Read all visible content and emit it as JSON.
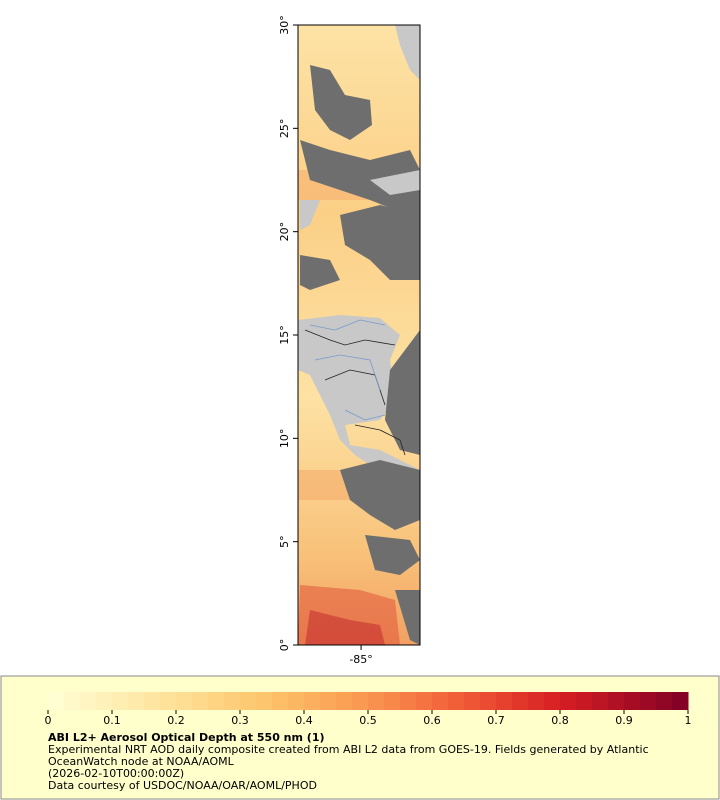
{
  "map": {
    "ylim": [
      0,
      30
    ],
    "yticks": [
      {
        "value": 0,
        "label": "0°"
      },
      {
        "value": 5,
        "label": "5°"
      },
      {
        "value": 10,
        "label": "10°"
      },
      {
        "value": 15,
        "label": "15°"
      },
      {
        "value": 20,
        "label": "20°"
      },
      {
        "value": 25,
        "label": "25°"
      },
      {
        "value": 30,
        "label": "30°"
      }
    ],
    "xlim": [
      -88.05,
      -82.15
    ],
    "xticks": [
      {
        "value": -85,
        "label": "-85°"
      }
    ]
  },
  "colorbar": {
    "title": "ABI L2+ Aerosol Optical Depth at 550 nm (1)",
    "lim": [
      0,
      1
    ],
    "ticks": [
      0,
      0.1,
      0.2,
      0.3,
      0.4,
      0.5,
      0.6,
      0.7,
      0.8,
      0.9,
      1
    ]
  },
  "caption": [
    "Experimental NRT AOD daily composite created from ABI L2 data from GOES-19. Fields generated by Atlantic",
    "OceanWatch node at NOAA/AOML",
    "(2026-02-10T00:00:00Z)",
    "Data courtesy of USDOC/NOAA/OAR/AOML/PHOD"
  ]
}
